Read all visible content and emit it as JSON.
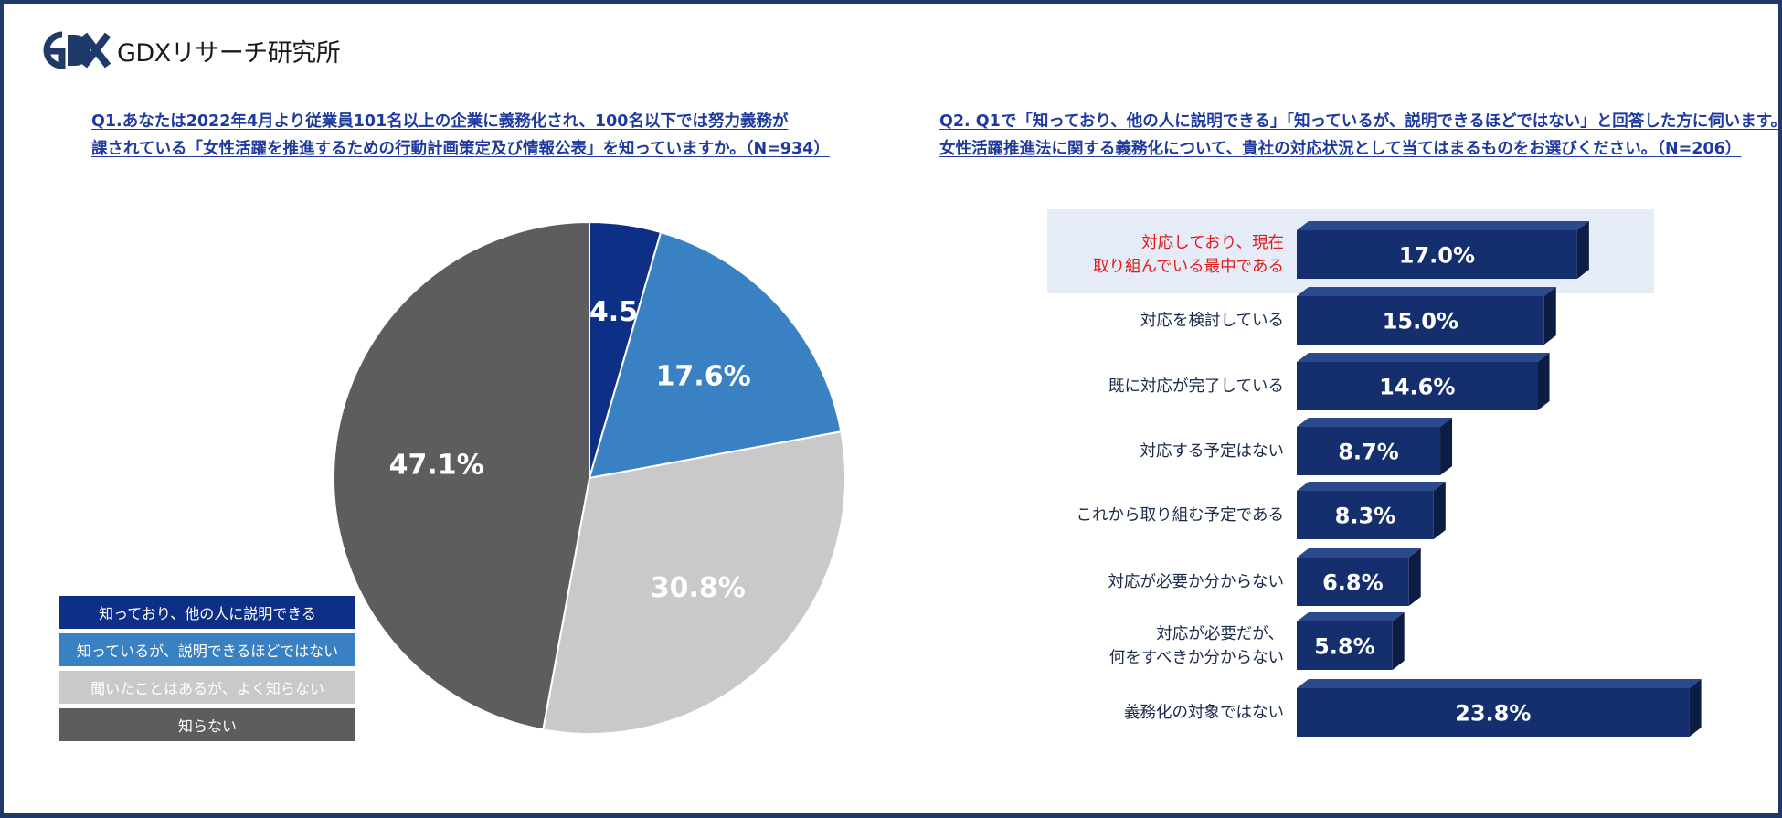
{
  "brand": {
    "logo_text": "GDXリサーチ研究所",
    "logo_mark": "GDX"
  },
  "q1": {
    "title_line1": "Q1.あなたは2022年4月より従業員101名以上の企業に義務化され、100名以下では努力義務が",
    "title_line2": "課されている「女性活躍を推進するための行動計画策定及び情報公表」を知っていますか。（N=934）"
  },
  "q2": {
    "title_line1": "Q2. Q1で「知っており、他の人に説明できる」「知っているが、説明できるほどではない」と回答した方に伺います。",
    "title_line2": "女性活躍推進法に関する義務化について、貴社の対応状況として当てはまるものをお選びください。（N=206）"
  },
  "legend": [
    {
      "label": "知っており、他の人に説明できる",
      "color": "#0e2f86"
    },
    {
      "label": "知っているが、説明できるほどではない",
      "color": "#3a81c4"
    },
    {
      "label": "聞いたことはあるが、よく知らない",
      "color": "#c9c9c9"
    },
    {
      "label": "知らない",
      "color": "#5d5d5d"
    }
  ],
  "chart_data": [
    {
      "type": "pie",
      "categories": [
        "知っており、他の人に説明できる",
        "知っているが、説明できるほどではない",
        "聞いたことはあるが、よく知らない",
        "知らない"
      ],
      "values": [
        4.5,
        17.6,
        30.8,
        47.1
      ],
      "labels": [
        "4.5%",
        "17.6%",
        "30.8%",
        "47.1%"
      ],
      "colors": [
        "#0e2f86",
        "#3a81c4",
        "#c9c9c9",
        "#5d5d5d"
      ],
      "label_colors": [
        "#ffffff",
        "#ffffff",
        "#ffffff",
        "#ffffff"
      ],
      "legend_position": "bottom-left"
    },
    {
      "type": "bar",
      "orientation": "horizontal",
      "categories": [
        [
          "対応しており、現在",
          "取り組んでいる最中である"
        ],
        [
          "対応を検討している"
        ],
        [
          "既に対応が完了している"
        ],
        [
          "対応する予定はない"
        ],
        [
          "これから取り組む予定である"
        ],
        [
          "対応が必要か分からない"
        ],
        [
          "対応が必要だが、",
          "何をすべきか分からない"
        ],
        [
          "義務化の対象ではない"
        ]
      ],
      "values": [
        17.0,
        15.0,
        14.6,
        8.7,
        8.3,
        6.8,
        5.8,
        23.8
      ],
      "labels": [
        "17.0%",
        "15.0%",
        "14.6%",
        "8.7%",
        "8.3%",
        "6.8%",
        "5.8%",
        "23.8%"
      ],
      "highlighted_index": 0,
      "bar_color": "#152f6e",
      "highlight_label_color": "#e01c1c",
      "highlight_background": "#e5ecf8"
    }
  ]
}
